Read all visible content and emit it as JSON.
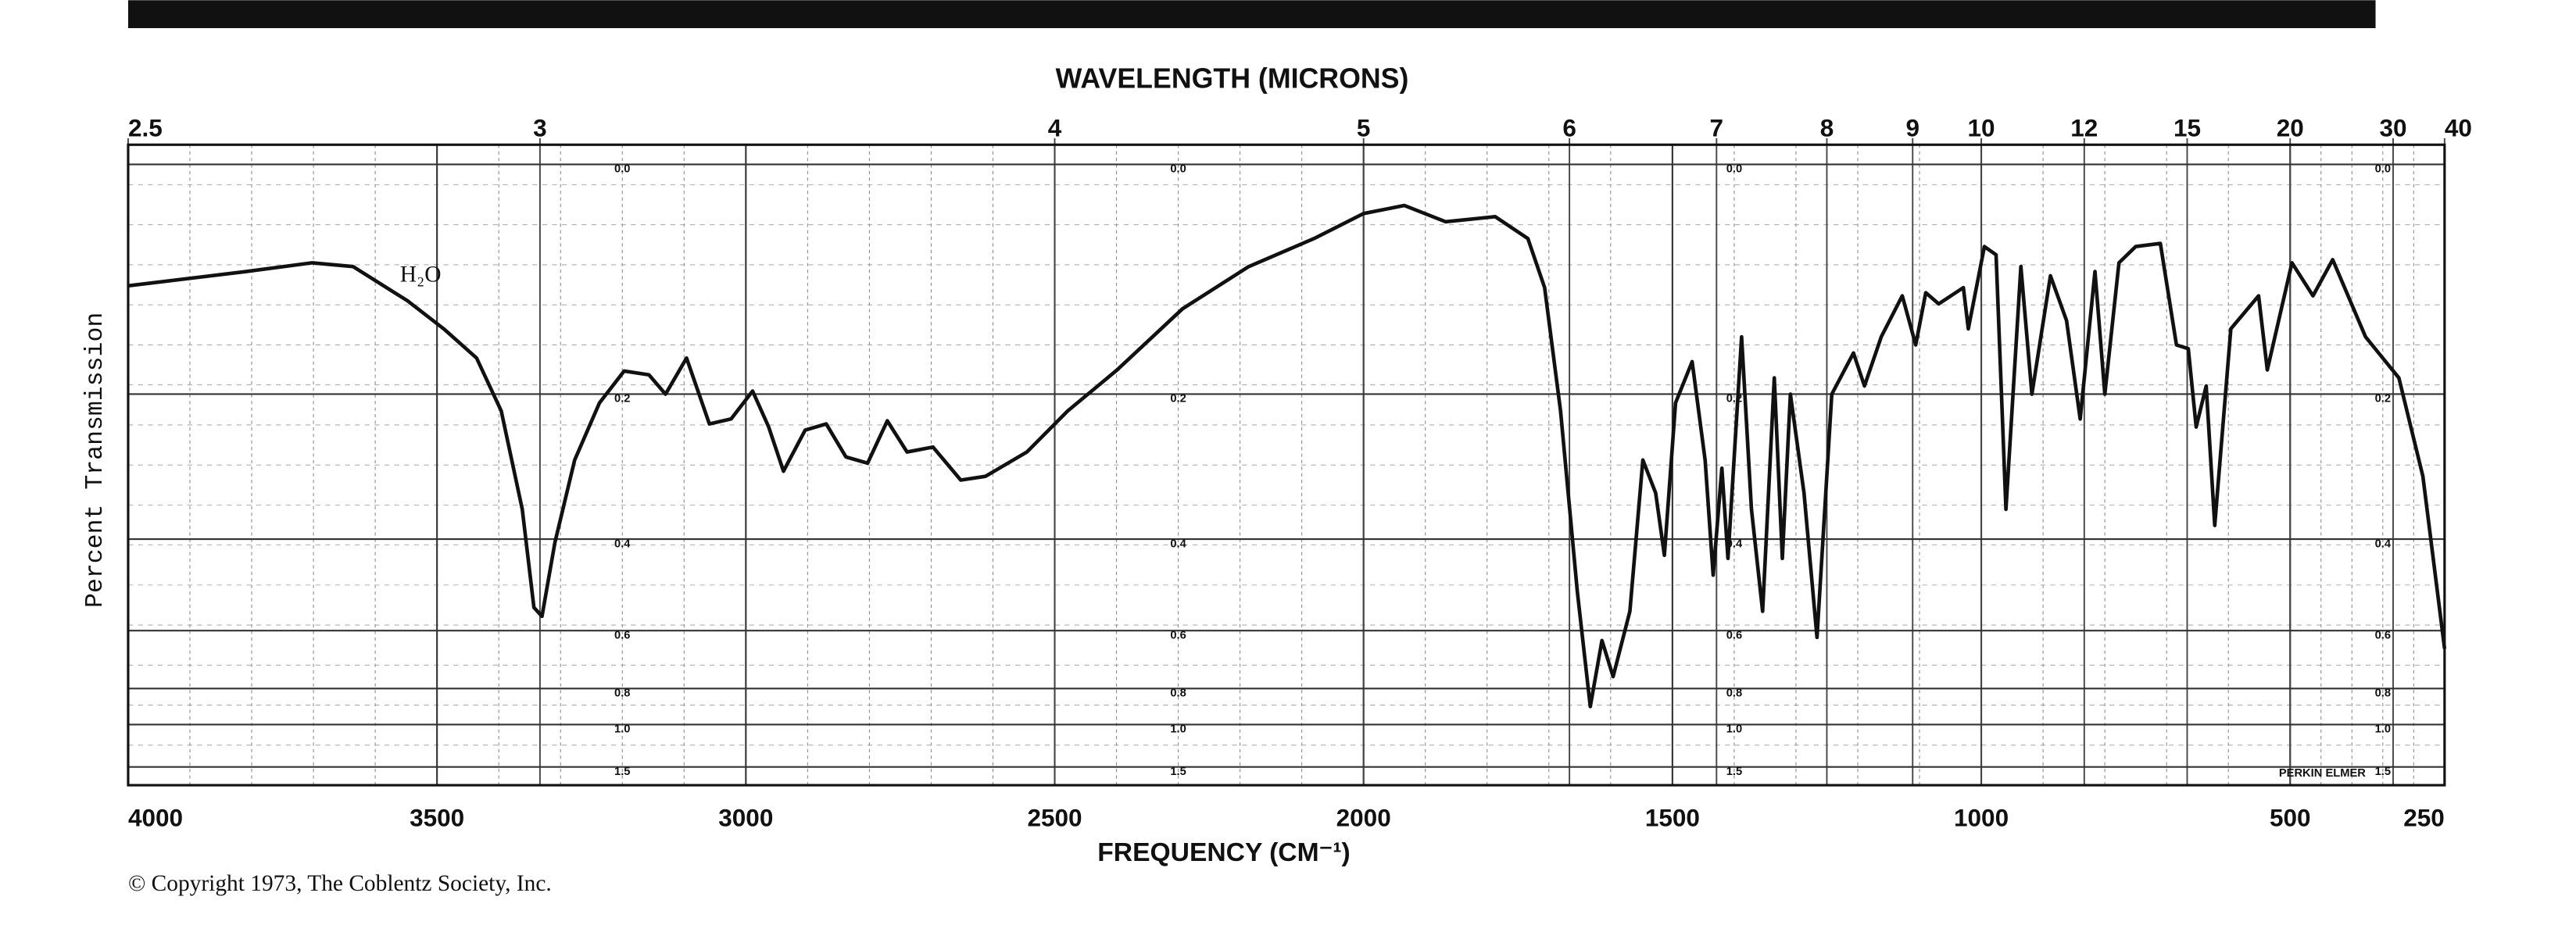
{
  "chart_data": {
    "type": "line",
    "title": "WAVELENGTH (MICRONS)",
    "x_label": "FREQUENCY (CM⁻¹)",
    "y_label": "Percent Transmission",
    "annotation": "H₂O",
    "annotation_x": 3560,
    "annotation_y": 82,
    "brand": "PERKIN ELMER",
    "copyright": "© Copyright 1973, The Coblentz Society, Inc.",
    "color": "#111111",
    "xlim": [
      4000,
      250
    ],
    "ylim": [
      0,
      100
    ],
    "xticks": [
      4000,
      3500,
      3000,
      2500,
      2000,
      1500,
      1000,
      500,
      250
    ],
    "x2ticks": [
      {
        "value": 4000,
        "label": "2.5"
      },
      {
        "value": 3333.3,
        "label": "3"
      },
      {
        "value": 2500,
        "label": "4"
      },
      {
        "value": 2000,
        "label": "5"
      },
      {
        "value": 1666.7,
        "label": "6"
      },
      {
        "value": 1428.6,
        "label": "7"
      },
      {
        "value": 1250,
        "label": "8"
      },
      {
        "value": 1111.1,
        "label": "9"
      },
      {
        "value": 1000,
        "label": "10"
      },
      {
        "value": 833.3,
        "label": "12"
      },
      {
        "value": 666.7,
        "label": "15"
      },
      {
        "value": 500,
        "label": "20"
      },
      {
        "value": 333.3,
        "label": "30"
      },
      {
        "value": 250,
        "label": "40"
      }
    ],
    "absorbance_ticks": [
      {
        "value": 100,
        "label": "0.0"
      },
      {
        "value": 63.1,
        "label": "0.2"
      },
      {
        "value": 39.8,
        "label": "0.4"
      },
      {
        "value": 25.1,
        "label": "0.6"
      },
      {
        "value": 15.8,
        "label": "0.8"
      },
      {
        "value": 10,
        "label": "1.0"
      },
      {
        "value": 3.2,
        "label": "1.5"
      }
    ],
    "absorbance_scale_x": [
      3200,
      2300,
      1400,
      350
    ],
    "grid": true,
    "x": [
      4000,
      3809,
      3702,
      3636,
      3548,
      3489,
      3436,
      3396,
      3362,
      3343,
      3330,
      3309,
      3277,
      3237,
      3197,
      3157,
      3130,
      3096,
      3059,
      3024,
      2989,
      2963,
      2939,
      2904,
      2870,
      2838,
      2803,
      2771,
      2739,
      2697,
      2652,
      2612,
      2545,
      2479,
      2399,
      2293,
      2186,
      2080,
      2000,
      1934,
      1867,
      1787,
      1734,
      1707,
      1681,
      1654,
      1633,
      1614,
      1596,
      1569,
      1548,
      1527,
      1513,
      1495,
      1468,
      1447,
      1434,
      1420,
      1410,
      1388,
      1372,
      1354,
      1335,
      1322,
      1309,
      1287,
      1266,
      1242,
      1207,
      1189,
      1162,
      1128,
      1106,
      1090,
      1069,
      1029,
      1021,
      995,
      976,
      960,
      936,
      918,
      888,
      862,
      840,
      816,
      800,
      777,
      750,
      710,
      684,
      665,
      652,
      636,
      622,
      596,
      551,
      537,
      497,
      463,
      431,
      378,
      324,
      285,
      250
    ],
    "values": [
      80.5,
      82.8,
      84.2,
      83.6,
      78.1,
      73.6,
      68.9,
      60.4,
      44.6,
      28.8,
      27.4,
      39.3,
      52.5,
      61.7,
      66.8,
      66.2,
      63.1,
      68.9,
      58.3,
      59.1,
      63.6,
      57.8,
      50.7,
      57.3,
      58.3,
      53.0,
      52.0,
      58.8,
      53.8,
      54.6,
      49.3,
      49.9,
      53.8,
      60.4,
      67.0,
      76.8,
      83.6,
      88.1,
      92.1,
      93.4,
      90.8,
      91.6,
      88.1,
      80.2,
      60.4,
      31.4,
      12.9,
      23.5,
      17.7,
      28.2,
      52.5,
      47.2,
      37.2,
      61.7,
      68.3,
      52.5,
      34.0,
      51.2,
      36.7,
      72.3,
      44.6,
      28.2,
      65.7,
      36.7,
      63.1,
      47.2,
      24.0,
      63.1,
      69.7,
      64.4,
      72.3,
      78.9,
      71.0,
      79.4,
      77.6,
      80.2,
      73.6,
      86.8,
      85.5,
      44.6,
      83.6,
      63.1,
      82.1,
      74.9,
      59.1,
      82.8,
      63.1,
      84.2,
      86.8,
      87.3,
      71.0,
      70.4,
      57.8,
      64.4,
      42.0,
      73.6,
      78.9,
      67.0,
      84.2,
      78.9,
      84.7,
      72.3,
      65.7,
      49.9,
      22.2
    ]
  }
}
